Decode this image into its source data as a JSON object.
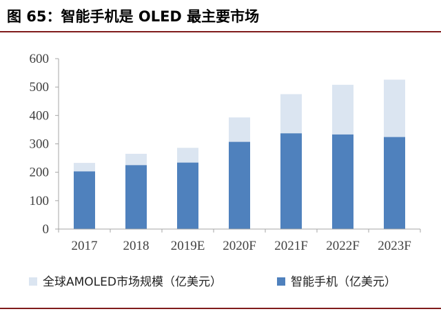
{
  "figure": {
    "title": "图 65：智能手机是 OLED 最主要市场"
  },
  "chart_data": {
    "type": "bar",
    "categories": [
      "2017",
      "2018",
      "2019E",
      "2020F",
      "2021F",
      "2022F",
      "2023F"
    ],
    "series": [
      {
        "name": "全球AMOLED市场规模（亿美元）",
        "color": "#dbe5f1",
        "values": [
          233,
          265,
          286,
          393,
          475,
          508,
          526
        ]
      },
      {
        "name": "智能手机（亿美元）",
        "color": "#4f81bd",
        "values": [
          203,
          225,
          234,
          307,
          337,
          333,
          324
        ]
      }
    ],
    "ylim": [
      0,
      600
    ],
    "yticks": [
      0,
      100,
      200,
      300,
      400,
      500,
      600
    ],
    "grid": false,
    "legend_position": "bottom",
    "title": "",
    "xlabel": "",
    "ylabel": ""
  }
}
